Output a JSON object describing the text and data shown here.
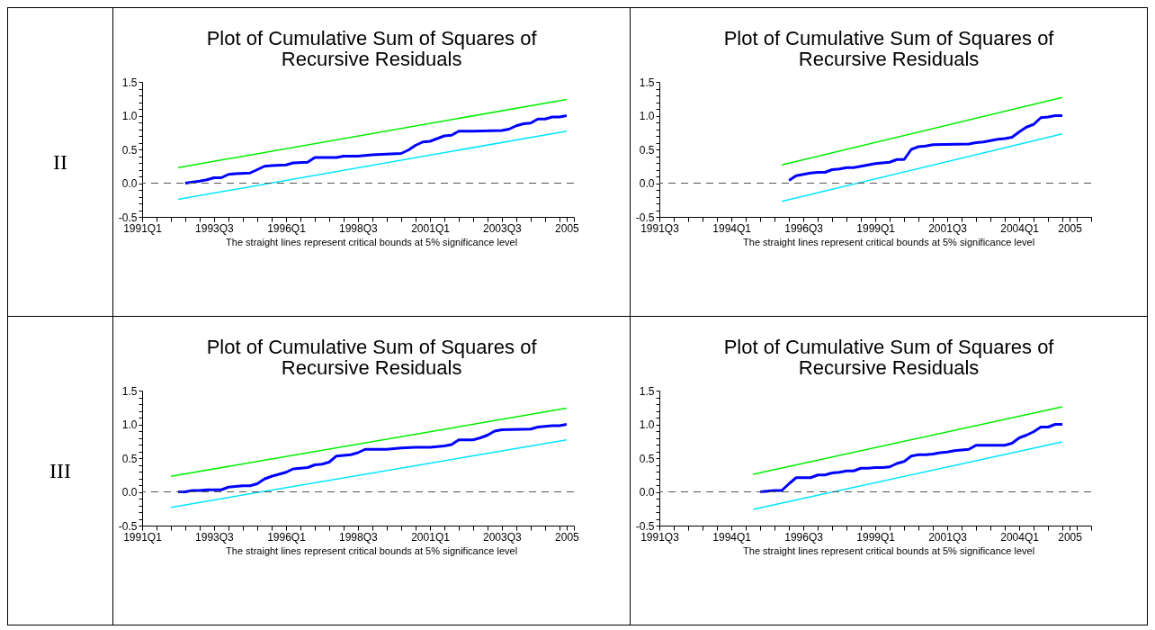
{
  "chart_data": [
    {
      "type": "line",
      "title": "Plot of Cumulative Sum of Squares of Recursive Residuals",
      "annotations": [
        "II",
        "The straight lines represent critical bounds at 5% significance level"
      ],
      "xlim": [
        "1991-01",
        "2006-01"
      ],
      "ylim": [
        -0.5,
        1.5
      ],
      "xticks": [
        {
          "value": "1991-01",
          "label": "1991Q1"
        },
        {
          "value": "1991-07",
          "label": null
        },
        {
          "value": "1992-01",
          "label": null
        },
        {
          "value": "1992-07",
          "label": null
        },
        {
          "value": "1993-01",
          "label": null
        },
        {
          "value": "1993-07",
          "label": "1993Q3"
        },
        {
          "value": "1994-01",
          "label": null
        },
        {
          "value": "1994-07",
          "label": null
        },
        {
          "value": "1995-01",
          "label": null
        },
        {
          "value": "1995-07",
          "label": null
        },
        {
          "value": "1996-01",
          "label": "1996Q1"
        },
        {
          "value": "1996-07",
          "label": null
        },
        {
          "value": "1997-01",
          "label": null
        },
        {
          "value": "1997-07",
          "label": null
        },
        {
          "value": "1998-01",
          "label": null
        },
        {
          "value": "1998-07",
          "label": "1998Q3"
        },
        {
          "value": "1999-01",
          "label": null
        },
        {
          "value": "1999-07",
          "label": null
        },
        {
          "value": "2000-01",
          "label": null
        },
        {
          "value": "2000-07",
          "label": null
        },
        {
          "value": "2001-01",
          "label": "2001Q1"
        },
        {
          "value": "2001-07",
          "label": null
        },
        {
          "value": "2002-01",
          "label": null
        },
        {
          "value": "2002-07",
          "label": null
        },
        {
          "value": "2003-01",
          "label": null
        },
        {
          "value": "2003-07",
          "label": "2003Q3"
        },
        {
          "value": "2004-01",
          "label": null
        },
        {
          "value": "2004-07",
          "label": null
        },
        {
          "value": "2005-01",
          "label": null
        },
        {
          "value": "2005-07",
          "label": null
        },
        {
          "value": "2005-10",
          "label": "2005"
        },
        {
          "value": "2006-01",
          "label": null
        }
      ],
      "yticks": [
        {
          "value": -0.5,
          "label": "-0.5"
        },
        {
          "value": -0.4,
          "label": null
        },
        {
          "value": -0.3,
          "label": null
        },
        {
          "value": -0.2,
          "label": null
        },
        {
          "value": -0.1,
          "label": null
        },
        {
          "value": 0,
          "label": "0.0"
        },
        {
          "value": 0.1,
          "label": null
        },
        {
          "value": 0.2,
          "label": null
        },
        {
          "value": 0.3,
          "label": null
        },
        {
          "value": 0.4,
          "label": null
        },
        {
          "value": 0.5,
          "label": "0.5"
        },
        {
          "value": 0.6,
          "label": null
        },
        {
          "value": 0.7,
          "label": null
        },
        {
          "value": 0.8,
          "label": null
        },
        {
          "value": 0.9,
          "label": null
        },
        {
          "value": 1,
          "label": "1.0"
        },
        {
          "value": 1.1,
          "label": null
        },
        {
          "value": 1.2,
          "label": null
        },
        {
          "value": 1.3,
          "label": null
        },
        {
          "value": 1.4,
          "label": null
        },
        {
          "value": 1.5,
          "label": "1.5"
        }
      ],
      "series": [
        {
          "color": "#0000ff",
          "x": [
            "1992-07",
            "1993-01",
            "1993-04",
            "1993-07",
            "1993-10",
            "1994-01",
            "1994-04",
            "1994-10",
            "1995-01",
            "1995-04",
            "1995-07",
            "1996-01",
            "1996-04",
            "1996-10",
            "1997-01",
            "1997-10",
            "1998-01",
            "1998-07",
            "1999-01",
            "1999-07",
            "2000-01",
            "2000-04",
            "2000-07",
            "2000-10",
            "2001-01",
            "2001-07",
            "2001-10",
            "2002-01",
            "2002-07",
            "2003-07",
            "2003-10",
            "2004-01",
            "2004-04",
            "2004-07",
            "2004-10",
            "2005-01",
            "2005-04",
            "2005-07",
            "2005-10"
          ],
          "values": [
            0,
            0.03,
            0.05,
            0.08,
            0.08,
            0.13,
            0.14,
            0.15,
            0.2,
            0.25,
            0.26,
            0.27,
            0.3,
            0.31,
            0.38,
            0.38,
            0.4,
            0.4,
            0.42,
            0.43,
            0.44,
            0.49,
            0.56,
            0.61,
            0.62,
            0.7,
            0.71,
            0.77,
            0.77,
            0.78,
            0.8,
            0.85,
            0.88,
            0.89,
            0.95,
            0.95,
            0.98,
            0.98,
            1
          ]
        },
        {
          "color": "#00ee00",
          "x": [
            "1992-04",
            "2005-10"
          ],
          "values": [
            0.23,
            1.24
          ]
        },
        {
          "color": "#00e5ff",
          "x": [
            "1992-04",
            "2005-10"
          ],
          "values": [
            -0.24,
            0.77
          ]
        }
      ],
      "ref_lines": [
        {
          "axis": "y",
          "value": 0,
          "color": "#555555",
          "line_style": "dashed"
        }
      ]
    },
    {
      "type": "line",
      "title": "Plot of Cumulative Sum of Squares of Recursive Residuals",
      "annotations": [
        "The straight lines represent critical bounds at 5% significance level"
      ],
      "xlim": [
        "1991-07",
        "2006-07"
      ],
      "ylim": [
        -0.5,
        1.5
      ],
      "xticks": [
        {
          "value": "1991-07",
          "label": "1991Q3"
        },
        {
          "value": "1992-01",
          "label": null
        },
        {
          "value": "1992-07",
          "label": null
        },
        {
          "value": "1993-01",
          "label": null
        },
        {
          "value": "1993-07",
          "label": null
        },
        {
          "value": "1994-01",
          "label": "1994Q1"
        },
        {
          "value": "1994-07",
          "label": null
        },
        {
          "value": "1995-01",
          "label": null
        },
        {
          "value": "1995-07",
          "label": null
        },
        {
          "value": "1996-01",
          "label": null
        },
        {
          "value": "1996-07",
          "label": "1996Q3"
        },
        {
          "value": "1997-01",
          "label": null
        },
        {
          "value": "1997-07",
          "label": null
        },
        {
          "value": "1998-01",
          "label": null
        },
        {
          "value": "1998-07",
          "label": null
        },
        {
          "value": "1999-01",
          "label": "1999Q1"
        },
        {
          "value": "1999-07",
          "label": null
        },
        {
          "value": "2000-01",
          "label": null
        },
        {
          "value": "2000-07",
          "label": null
        },
        {
          "value": "2001-01",
          "label": null
        },
        {
          "value": "2001-07",
          "label": "2001Q3"
        },
        {
          "value": "2002-01",
          "label": null
        },
        {
          "value": "2002-07",
          "label": null
        },
        {
          "value": "2003-01",
          "label": null
        },
        {
          "value": "2003-07",
          "label": null
        },
        {
          "value": "2004-01",
          "label": "2004Q1"
        },
        {
          "value": "2004-07",
          "label": null
        },
        {
          "value": "2005-01",
          "label": null
        },
        {
          "value": "2005-07",
          "label": null
        },
        {
          "value": "2005-10",
          "label": "2005"
        },
        {
          "value": "2006-01",
          "label": null
        },
        {
          "value": "2006-07",
          "label": null
        }
      ],
      "yticks": [
        {
          "value": -0.5,
          "label": "-0.5"
        },
        {
          "value": -0.4,
          "label": null
        },
        {
          "value": -0.3,
          "label": null
        },
        {
          "value": -0.2,
          "label": null
        },
        {
          "value": -0.1,
          "label": null
        },
        {
          "value": 0,
          "label": "0.0"
        },
        {
          "value": 0.1,
          "label": null
        },
        {
          "value": 0.2,
          "label": null
        },
        {
          "value": 0.3,
          "label": null
        },
        {
          "value": 0.4,
          "label": null
        },
        {
          "value": 0.5,
          "label": "0.5"
        },
        {
          "value": 0.6,
          "label": null
        },
        {
          "value": 0.7,
          "label": null
        },
        {
          "value": 0.8,
          "label": null
        },
        {
          "value": 0.9,
          "label": null
        },
        {
          "value": 1,
          "label": "1.0"
        },
        {
          "value": 1.1,
          "label": null
        },
        {
          "value": 1.2,
          "label": null
        },
        {
          "value": 1.3,
          "label": null
        },
        {
          "value": 1.4,
          "label": null
        },
        {
          "value": 1.5,
          "label": "1.5"
        }
      ],
      "series": [
        {
          "color": "#0000ff",
          "x": [
            "1996-01",
            "1996-04",
            "1996-07",
            "1996-10",
            "1997-01",
            "1997-04",
            "1997-07",
            "1997-10",
            "1998-01",
            "1998-04",
            "1998-07",
            "1998-10",
            "1999-01",
            "1999-04",
            "1999-07",
            "1999-10",
            "2000-01",
            "2000-04",
            "2000-07",
            "2000-10",
            "2001-01",
            "2002-04",
            "2002-07",
            "2002-10",
            "2003-01",
            "2003-04",
            "2003-07",
            "2003-10",
            "2004-01",
            "2004-04",
            "2004-07",
            "2004-10",
            "2005-01",
            "2005-04",
            "2005-07"
          ],
          "values": [
            0.04,
            0.11,
            0.13,
            0.15,
            0.16,
            0.16,
            0.2,
            0.21,
            0.23,
            0.23,
            0.25,
            0.27,
            0.29,
            0.3,
            0.31,
            0.35,
            0.35,
            0.5,
            0.54,
            0.55,
            0.57,
            0.58,
            0.6,
            0.61,
            0.63,
            0.65,
            0.66,
            0.68,
            0.76,
            0.83,
            0.87,
            0.97,
            0.98,
            1,
            1
          ]
        },
        {
          "color": "#00ee00",
          "x": [
            "1995-10",
            "2005-07"
          ],
          "values": [
            0.27,
            1.27
          ]
        },
        {
          "color": "#00e5ff",
          "x": [
            "1995-10",
            "2005-07"
          ],
          "values": [
            -0.27,
            0.73
          ]
        }
      ],
      "ref_lines": [
        {
          "axis": "y",
          "value": 0,
          "color": "#555555",
          "line_style": "dashed"
        }
      ]
    },
    {
      "type": "line",
      "title": "Plot of Cumulative Sum of Squares of Recursive Residuals",
      "annotations": [
        "III",
        "The straight lines represent critical bounds at 5% significance level"
      ],
      "xlim": [
        "1991-01",
        "2006-01"
      ],
      "ylim": [
        -0.5,
        1.5
      ],
      "xticks": [
        {
          "value": "1991-01",
          "label": "1991Q1"
        },
        {
          "value": "1991-07",
          "label": null
        },
        {
          "value": "1992-01",
          "label": null
        },
        {
          "value": "1992-07",
          "label": null
        },
        {
          "value": "1993-01",
          "label": null
        },
        {
          "value": "1993-07",
          "label": "1993Q3"
        },
        {
          "value": "1994-01",
          "label": null
        },
        {
          "value": "1994-07",
          "label": null
        },
        {
          "value": "1995-01",
          "label": null
        },
        {
          "value": "1995-07",
          "label": null
        },
        {
          "value": "1996-01",
          "label": "1996Q1"
        },
        {
          "value": "1996-07",
          "label": null
        },
        {
          "value": "1997-01",
          "label": null
        },
        {
          "value": "1997-07",
          "label": null
        },
        {
          "value": "1998-01",
          "label": null
        },
        {
          "value": "1998-07",
          "label": "1998Q3"
        },
        {
          "value": "1999-01",
          "label": null
        },
        {
          "value": "1999-07",
          "label": null
        },
        {
          "value": "2000-01",
          "label": null
        },
        {
          "value": "2000-07",
          "label": null
        },
        {
          "value": "2001-01",
          "label": "2001Q1"
        },
        {
          "value": "2001-07",
          "label": null
        },
        {
          "value": "2002-01",
          "label": null
        },
        {
          "value": "2002-07",
          "label": null
        },
        {
          "value": "2003-01",
          "label": null
        },
        {
          "value": "2003-07",
          "label": "2003Q3"
        },
        {
          "value": "2004-01",
          "label": null
        },
        {
          "value": "2004-07",
          "label": null
        },
        {
          "value": "2005-01",
          "label": null
        },
        {
          "value": "2005-07",
          "label": null
        },
        {
          "value": "2005-10",
          "label": "2005"
        },
        {
          "value": "2006-01",
          "label": null
        }
      ],
      "yticks": [
        {
          "value": -0.5,
          "label": "-0.5"
        },
        {
          "value": -0.4,
          "label": null
        },
        {
          "value": -0.3,
          "label": null
        },
        {
          "value": -0.2,
          "label": null
        },
        {
          "value": -0.1,
          "label": null
        },
        {
          "value": 0,
          "label": "0.0"
        },
        {
          "value": 0.1,
          "label": null
        },
        {
          "value": 0.2,
          "label": null
        },
        {
          "value": 0.3,
          "label": null
        },
        {
          "value": 0.4,
          "label": null
        },
        {
          "value": 0.5,
          "label": "0.5"
        },
        {
          "value": 0.6,
          "label": null
        },
        {
          "value": 0.7,
          "label": null
        },
        {
          "value": 0.8,
          "label": null
        },
        {
          "value": 0.9,
          "label": null
        },
        {
          "value": 1,
          "label": "1.0"
        },
        {
          "value": 1.1,
          "label": null
        },
        {
          "value": 1.2,
          "label": null
        },
        {
          "value": 1.3,
          "label": null
        },
        {
          "value": 1.4,
          "label": null
        },
        {
          "value": 1.5,
          "label": "1.5"
        }
      ],
      "series": [
        {
          "color": "#0000ff",
          "x": [
            "1992-04",
            "1992-07",
            "1992-10",
            "1993-01",
            "1993-04",
            "1993-07",
            "1993-10",
            "1994-01",
            "1994-04",
            "1994-07",
            "1994-10",
            "1995-01",
            "1995-04",
            "1995-07",
            "1995-10",
            "1996-01",
            "1996-04",
            "1996-07",
            "1996-10",
            "1997-01",
            "1997-04",
            "1997-07",
            "1997-10",
            "1998-01",
            "1998-04",
            "1998-07",
            "1998-10",
            "1999-07",
            "2000-01",
            "2000-07",
            "2001-01",
            "2001-07",
            "2001-10",
            "2002-01",
            "2002-07",
            "2002-10",
            "2003-01",
            "2003-04",
            "2003-07",
            "2004-07",
            "2004-10",
            "2005-01",
            "2005-04",
            "2005-07",
            "2005-10"
          ],
          "values": [
            0,
            0,
            0.02,
            0.02,
            0.03,
            0.03,
            0.03,
            0.07,
            0.08,
            0.09,
            0.09,
            0.12,
            0.19,
            0.23,
            0.26,
            0.29,
            0.34,
            0.35,
            0.36,
            0.4,
            0.41,
            0.44,
            0.53,
            0.54,
            0.55,
            0.58,
            0.63,
            0.63,
            0.65,
            0.66,
            0.66,
            0.68,
            0.7,
            0.77,
            0.77,
            0.8,
            0.84,
            0.9,
            0.92,
            0.93,
            0.96,
            0.97,
            0.98,
            0.98,
            1
          ]
        },
        {
          "color": "#00ee00",
          "x": [
            "1992-01",
            "2005-10"
          ],
          "values": [
            0.23,
            1.24
          ]
        },
        {
          "color": "#00e5ff",
          "x": [
            "1992-01",
            "2005-10"
          ],
          "values": [
            -0.23,
            0.77
          ]
        }
      ],
      "ref_lines": [
        {
          "axis": "y",
          "value": 0,
          "color": "#555555",
          "line_style": "dashed"
        }
      ]
    },
    {
      "type": "line",
      "title": "Plot of Cumulative Sum of Squares of Recursive Residuals",
      "annotations": [
        "The straight lines represent critical bounds at 5% significance level"
      ],
      "xlim": [
        "1991-07",
        "2006-07"
      ],
      "ylim": [
        -0.5,
        1.5
      ],
      "xticks": [
        {
          "value": "1991-07",
          "label": "1991Q3"
        },
        {
          "value": "1992-01",
          "label": null
        },
        {
          "value": "1992-07",
          "label": null
        },
        {
          "value": "1993-01",
          "label": null
        },
        {
          "value": "1993-07",
          "label": null
        },
        {
          "value": "1994-01",
          "label": "1994Q1"
        },
        {
          "value": "1994-07",
          "label": null
        },
        {
          "value": "1995-01",
          "label": null
        },
        {
          "value": "1995-07",
          "label": null
        },
        {
          "value": "1996-01",
          "label": null
        },
        {
          "value": "1996-07",
          "label": "1996Q3"
        },
        {
          "value": "1997-01",
          "label": null
        },
        {
          "value": "1997-07",
          "label": null
        },
        {
          "value": "1998-01",
          "label": null
        },
        {
          "value": "1998-07",
          "label": null
        },
        {
          "value": "1999-01",
          "label": "1999Q1"
        },
        {
          "value": "1999-07",
          "label": null
        },
        {
          "value": "2000-01",
          "label": null
        },
        {
          "value": "2000-07",
          "label": null
        },
        {
          "value": "2001-01",
          "label": null
        },
        {
          "value": "2001-07",
          "label": "2001Q3"
        },
        {
          "value": "2002-01",
          "label": null
        },
        {
          "value": "2002-07",
          "label": null
        },
        {
          "value": "2003-01",
          "label": null
        },
        {
          "value": "2003-07",
          "label": null
        },
        {
          "value": "2004-01",
          "label": "2004Q1"
        },
        {
          "value": "2004-07",
          "label": null
        },
        {
          "value": "2005-01",
          "label": null
        },
        {
          "value": "2005-07",
          "label": null
        },
        {
          "value": "2005-10",
          "label": "2005"
        },
        {
          "value": "2006-01",
          "label": null
        },
        {
          "value": "2006-07",
          "label": null
        }
      ],
      "yticks": [
        {
          "value": -0.5,
          "label": "-0.5"
        },
        {
          "value": -0.4,
          "label": null
        },
        {
          "value": -0.3,
          "label": null
        },
        {
          "value": -0.2,
          "label": null
        },
        {
          "value": -0.1,
          "label": null
        },
        {
          "value": 0,
          "label": "0.0"
        },
        {
          "value": 0.1,
          "label": null
        },
        {
          "value": 0.2,
          "label": null
        },
        {
          "value": 0.3,
          "label": null
        },
        {
          "value": 0.4,
          "label": null
        },
        {
          "value": 0.5,
          "label": "0.5"
        },
        {
          "value": 0.6,
          "label": null
        },
        {
          "value": 0.7,
          "label": null
        },
        {
          "value": 0.8,
          "label": null
        },
        {
          "value": 0.9,
          "label": null
        },
        {
          "value": 1,
          "label": "1.0"
        },
        {
          "value": 1.1,
          "label": null
        },
        {
          "value": 1.2,
          "label": null
        },
        {
          "value": 1.3,
          "label": null
        },
        {
          "value": 1.4,
          "label": null
        },
        {
          "value": 1.5,
          "label": "1.5"
        }
      ],
      "series": [
        {
          "color": "#0000ff",
          "x": [
            "1995-01",
            "1995-04",
            "1995-07",
            "1995-10",
            "1996-01",
            "1996-04",
            "1996-07",
            "1996-10",
            "1997-01",
            "1997-04",
            "1997-07",
            "1997-10",
            "1998-01",
            "1998-04",
            "1998-07",
            "1998-10",
            "1999-01",
            "1999-04",
            "1999-07",
            "1999-10",
            "2000-01",
            "2000-04",
            "2000-07",
            "2000-10",
            "2001-01",
            "2001-04",
            "2001-07",
            "2001-10",
            "2002-01",
            "2002-04",
            "2002-07",
            "2002-10",
            "2003-07",
            "2003-10",
            "2004-01",
            "2004-04",
            "2004-07",
            "2004-10",
            "2005-01",
            "2005-04",
            "2005-07"
          ],
          "values": [
            0,
            0.01,
            0.02,
            0.02,
            0.12,
            0.21,
            0.21,
            0.21,
            0.25,
            0.25,
            0.28,
            0.29,
            0.31,
            0.31,
            0.35,
            0.35,
            0.36,
            0.36,
            0.37,
            0.42,
            0.45,
            0.53,
            0.55,
            0.55,
            0.56,
            0.58,
            0.59,
            0.61,
            0.62,
            0.63,
            0.69,
            0.69,
            0.69,
            0.72,
            0.8,
            0.84,
            0.89,
            0.96,
            0.96,
            1,
            1
          ]
        },
        {
          "color": "#00ee00",
          "x": [
            "1994-10",
            "2005-07"
          ],
          "values": [
            0.26,
            1.26
          ]
        },
        {
          "color": "#00e5ff",
          "x": [
            "1994-10",
            "2005-07"
          ],
          "values": [
            -0.26,
            0.74
          ]
        }
      ],
      "ref_lines": [
        {
          "axis": "y",
          "value": 0,
          "color": "#555555",
          "line_style": "dashed"
        }
      ]
    }
  ]
}
